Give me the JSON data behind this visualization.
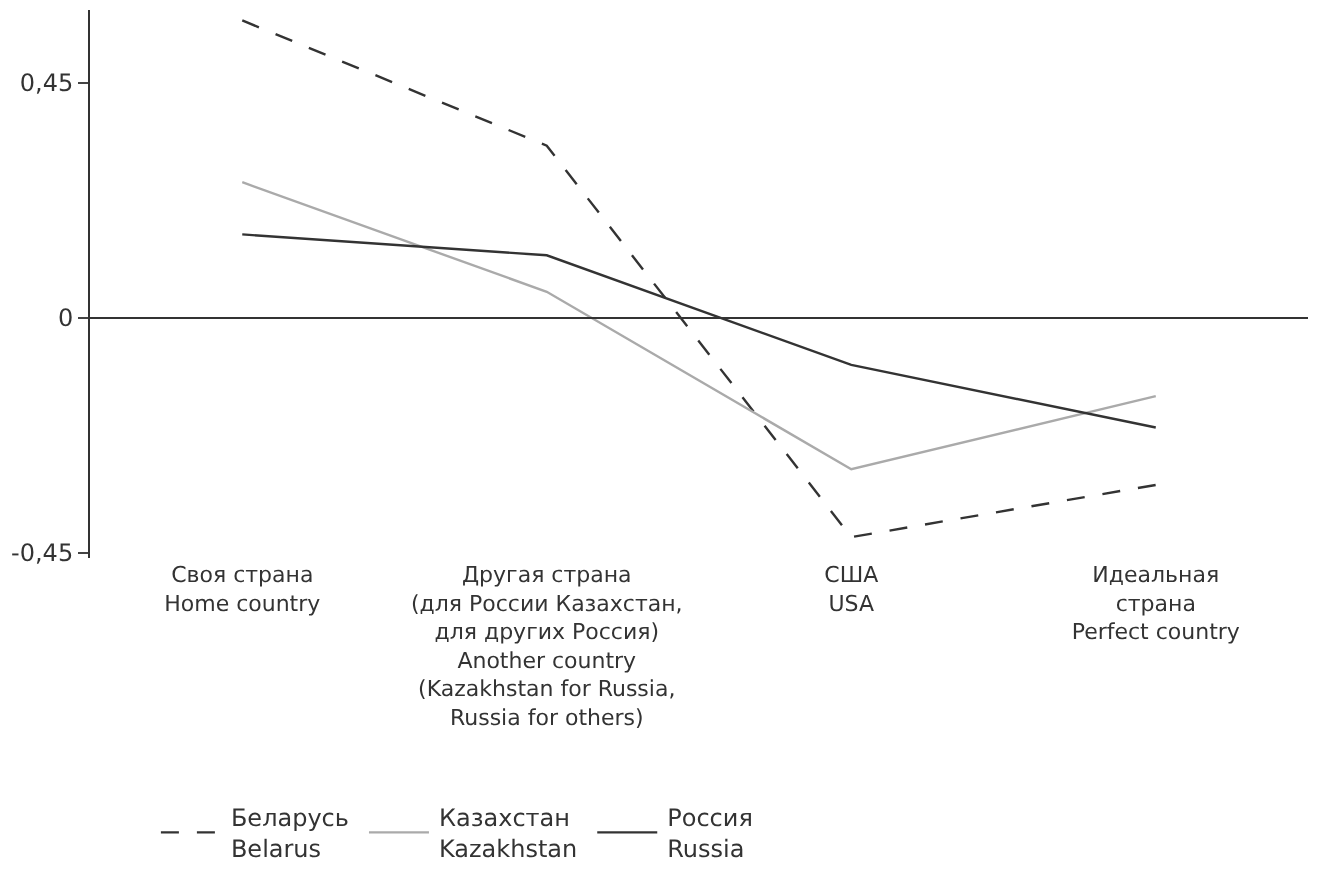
{
  "chart_data": {
    "type": "line",
    "categories": [
      "Своя страна\nHome country",
      "Другая страна\n(для России Казахстан,\nдля других Россия)\nAnother country\n(Kazakhstan for Russia,\nRussia for others)",
      "США\nUSA",
      "Идеальная\nстрана\nPerfect country"
    ],
    "series": [
      {
        "name": "Беларусь\nBelarus",
        "color": "#333333",
        "line_style": "dashed",
        "values": [
          0.57,
          0.33,
          -0.42,
          -0.32
        ]
      },
      {
        "name": "Казахстан\nKazakhstan",
        "color": "#aaaaaa",
        "line_style": "solid",
        "values": [
          0.26,
          0.05,
          -0.29,
          -0.15
        ]
      },
      {
        "name": "Россия\nRussia",
        "color": "#333333",
        "line_style": "solid",
        "values": [
          0.16,
          0.12,
          -0.09,
          -0.21
        ]
      }
    ],
    "ylim": [
      -0.46,
      0.59
    ],
    "yticks": [
      {
        "value": -0.45,
        "label": "-0,45"
      },
      0,
      {
        "value": 0.45,
        "label": "0,45"
      }
    ],
    "ref_lines": [
      {
        "axis": "y",
        "value": 0
      }
    ],
    "grid": false,
    "legend": "bottom",
    "marker": "none"
  }
}
